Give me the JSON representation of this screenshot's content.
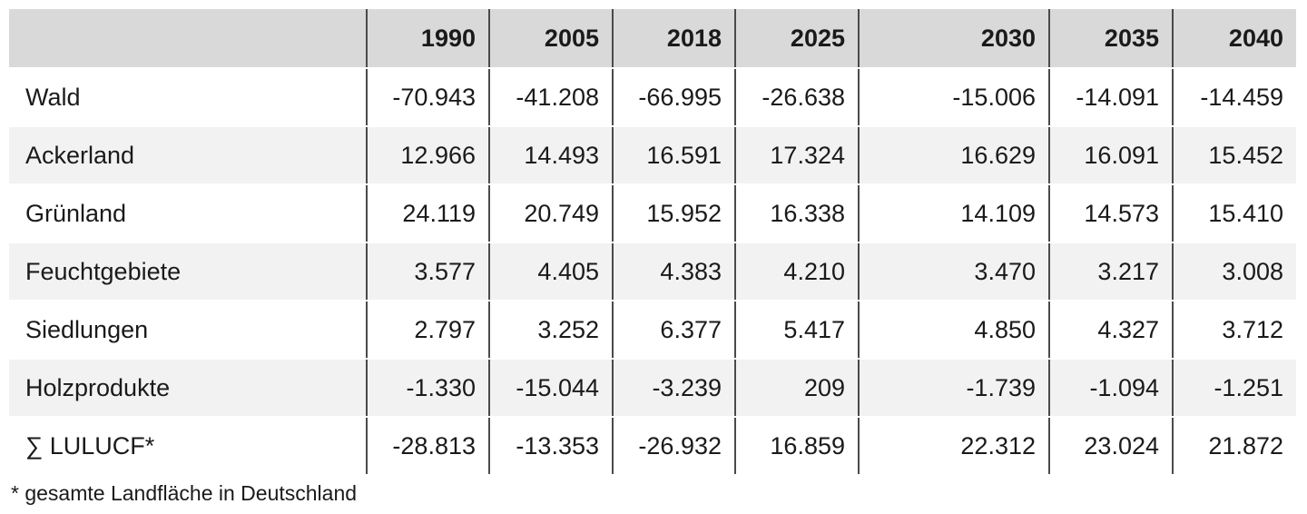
{
  "table": {
    "header": {
      "label": "",
      "years": [
        "1990",
        "2005",
        "2018",
        "2025",
        "2030",
        "2035",
        "2040"
      ]
    },
    "rows": [
      {
        "label": "Wald",
        "values": [
          "-70.943",
          "-41.208",
          "-66.995",
          "-26.638",
          "-15.006",
          "-14.091",
          "-14.459"
        ]
      },
      {
        "label": "Ackerland",
        "values": [
          "12.966",
          "14.493",
          "16.591",
          "17.324",
          "16.629",
          "16.091",
          "15.452"
        ]
      },
      {
        "label": "Grünland",
        "values": [
          "24.119",
          "20.749",
          "15.952",
          "16.338",
          "14.109",
          "14.573",
          "15.410"
        ]
      },
      {
        "label": "Feuchtgebiete",
        "values": [
          "3.577",
          "4.405",
          "4.383",
          "4.210",
          "3.470",
          "3.217",
          "3.008"
        ]
      },
      {
        "label": "Siedlungen",
        "values": [
          "2.797",
          "3.252",
          "6.377",
          "5.417",
          "4.850",
          "4.327",
          "3.712"
        ]
      },
      {
        "label": "Holzprodukte",
        "values": [
          "-1.330",
          "-15.044",
          "-3.239",
          "209",
          "-1.739",
          "-1.094",
          "-1.251"
        ]
      },
      {
        "label": "∑ LULUCF*",
        "values": [
          "-28.813",
          "-13.353",
          "-26.932",
          "16.859",
          "22.312",
          "23.024",
          "21.872"
        ]
      }
    ]
  },
  "footnote": "* gesamte Landfläche in Deutschland",
  "colors": {
    "header_bg": "#d9d9d9",
    "shaded_row_bg": "#f2f2f2",
    "column_rule": "#4a4a4a"
  }
}
